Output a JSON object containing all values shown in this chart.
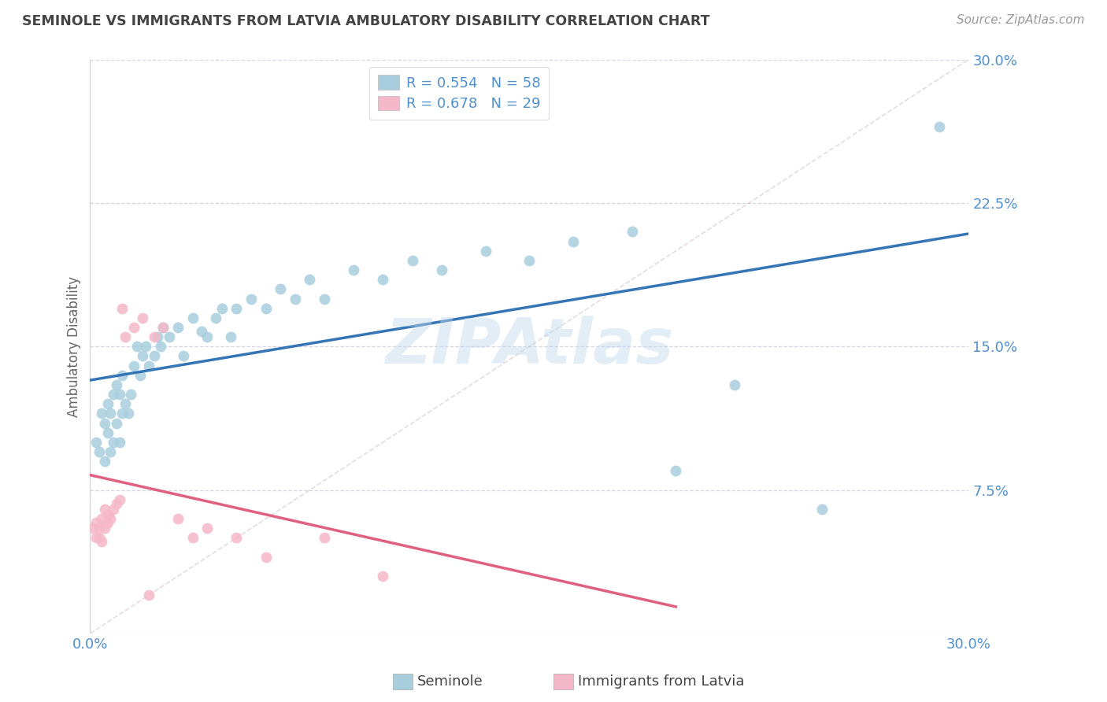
{
  "title": "SEMINOLE VS IMMIGRANTS FROM LATVIA AMBULATORY DISABILITY CORRELATION CHART",
  "source": "Source: ZipAtlas.com",
  "ylabel": "Ambulatory Disability",
  "watermark": "ZIPAtlas",
  "xlim": [
    0.0,
    0.3
  ],
  "ylim": [
    0.0,
    0.3
  ],
  "yticks_right": [
    0.075,
    0.15,
    0.225,
    0.3
  ],
  "ytick_labels_right": [
    "7.5%",
    "15.0%",
    "22.5%",
    "30.0%"
  ],
  "series1_color": "#A8CEDE",
  "series2_color": "#F5B8C8",
  "series1_line_color": "#3575B5",
  "series2_line_color": "#E06080",
  "legend_label1": "Seminole",
  "legend_label2": "Immigrants from Latvia",
  "R1": 0.554,
  "N1": 58,
  "R2": 0.678,
  "N2": 29,
  "title_color": "#444444",
  "axis_label_color": "#666666",
  "tick_color": "#5090CC",
  "grid_color": "#CCCCDD",
  "diag_color": "#DDDDDD",
  "background_color": "#FFFFFF",
  "seminole_x": [
    0.002,
    0.003,
    0.004,
    0.005,
    0.005,
    0.006,
    0.006,
    0.007,
    0.007,
    0.008,
    0.008,
    0.009,
    0.009,
    0.01,
    0.01,
    0.011,
    0.011,
    0.012,
    0.013,
    0.014,
    0.015,
    0.016,
    0.017,
    0.018,
    0.019,
    0.02,
    0.022,
    0.023,
    0.024,
    0.025,
    0.027,
    0.03,
    0.032,
    0.035,
    0.038,
    0.04,
    0.043,
    0.045,
    0.048,
    0.05,
    0.055,
    0.06,
    0.065,
    0.07,
    0.075,
    0.08,
    0.09,
    0.1,
    0.11,
    0.12,
    0.135,
    0.15,
    0.165,
    0.185,
    0.2,
    0.22,
    0.25,
    0.29
  ],
  "seminole_y": [
    0.1,
    0.095,
    0.115,
    0.09,
    0.11,
    0.105,
    0.12,
    0.095,
    0.115,
    0.1,
    0.125,
    0.11,
    0.13,
    0.1,
    0.125,
    0.115,
    0.135,
    0.12,
    0.115,
    0.125,
    0.14,
    0.15,
    0.135,
    0.145,
    0.15,
    0.14,
    0.145,
    0.155,
    0.15,
    0.16,
    0.155,
    0.16,
    0.145,
    0.165,
    0.158,
    0.155,
    0.165,
    0.17,
    0.155,
    0.17,
    0.175,
    0.17,
    0.18,
    0.175,
    0.185,
    0.175,
    0.19,
    0.185,
    0.195,
    0.19,
    0.2,
    0.195,
    0.205,
    0.21,
    0.085,
    0.13,
    0.065,
    0.265
  ],
  "latvia_x": [
    0.001,
    0.002,
    0.002,
    0.003,
    0.003,
    0.004,
    0.004,
    0.005,
    0.005,
    0.006,
    0.006,
    0.007,
    0.008,
    0.009,
    0.01,
    0.011,
    0.012,
    0.015,
    0.018,
    0.02,
    0.022,
    0.025,
    0.03,
    0.035,
    0.04,
    0.05,
    0.06,
    0.08,
    0.1
  ],
  "latvia_y": [
    0.055,
    0.05,
    0.058,
    0.05,
    0.055,
    0.048,
    0.06,
    0.055,
    0.065,
    0.058,
    0.062,
    0.06,
    0.065,
    0.068,
    0.07,
    0.17,
    0.155,
    0.16,
    0.165,
    0.02,
    0.155,
    0.16,
    0.06,
    0.05,
    0.055,
    0.05,
    0.04,
    0.05,
    0.03
  ]
}
